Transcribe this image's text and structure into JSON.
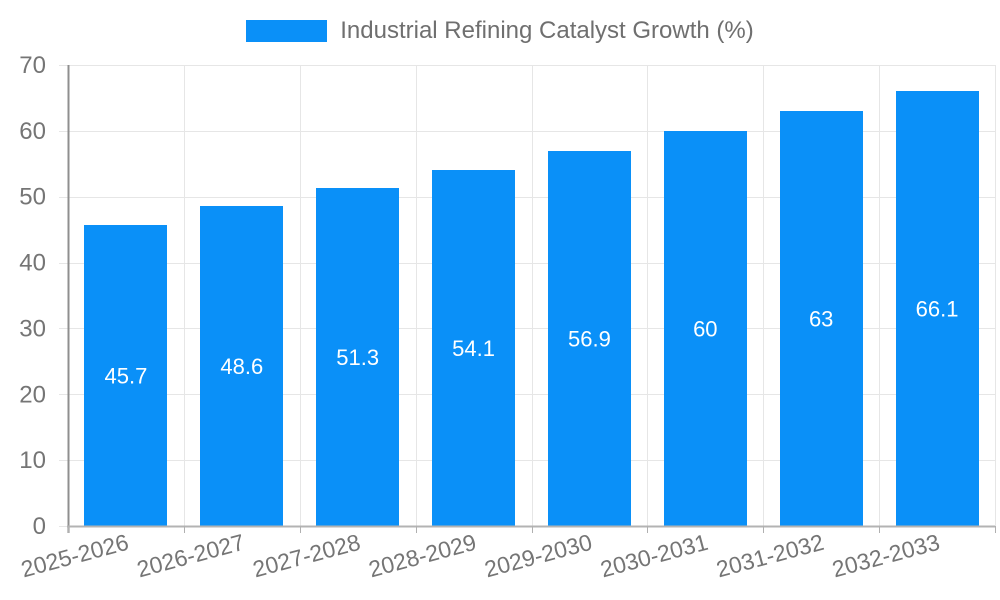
{
  "legend": {
    "label": "Industrial Refining Catalyst Growth (%)"
  },
  "colors": {
    "bar": "#0a90f8",
    "grid": "#e6e6e6",
    "axis_x": "#b3b3b3",
    "axis_y": "#8f8f8f",
    "tick": "#b0b0b0",
    "axis_text": "#757575",
    "legend_text": "#6f6f6f",
    "bar_label": "#ffffff",
    "background": "#ffffff"
  },
  "chart_data": {
    "type": "bar",
    "title": "Industrial Refining Catalyst Growth (%)",
    "series_name": "Industrial Refining Catalyst Growth (%)",
    "categories": [
      "2025-2026",
      "2026-2027",
      "2027-2028",
      "2028-2029",
      "2029-2030",
      "2030-2031",
      "2031-2032",
      "2032-2033"
    ],
    "values": [
      45.7,
      48.6,
      51.3,
      54.1,
      56.9,
      60,
      63,
      66.1
    ],
    "bar_labels": [
      "45.7",
      "48.6",
      "51.3",
      "54.1",
      "56.9",
      "60",
      "63",
      "66.1"
    ],
    "xlabel": "",
    "ylabel": "",
    "ylim": [
      0,
      70
    ],
    "yticks": [
      0,
      10,
      20,
      30,
      40,
      50,
      60,
      70
    ],
    "grid": true,
    "legend_position": "top-center",
    "x_tick_rotation_deg": -15
  }
}
